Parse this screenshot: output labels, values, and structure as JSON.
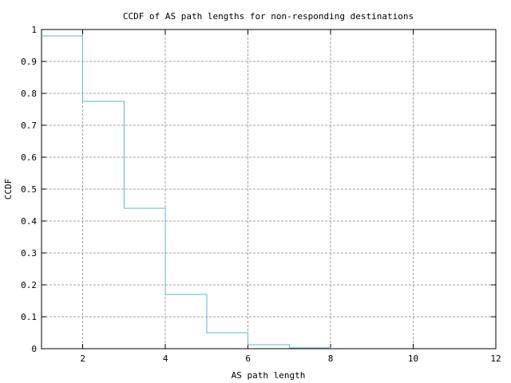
{
  "chart_data": {
    "type": "line",
    "subtype": "ccdf-step",
    "title": "CCDF of AS path lengths for non-responding destinations",
    "xlabel": "AS path length",
    "ylabel": "CCDF",
    "xlim": [
      1,
      12
    ],
    "ylim": [
      0,
      1
    ],
    "grid": "dashed",
    "legend": "none",
    "x_ticks": [
      {
        "v": 2,
        "label": "2",
        "grid": true
      },
      {
        "v": 4,
        "label": "4",
        "grid": true
      },
      {
        "v": 6,
        "label": "6",
        "grid": true
      },
      {
        "v": 8,
        "label": "8",
        "grid": true
      },
      {
        "v": 10,
        "label": "10",
        "grid": true
      },
      {
        "v": 12,
        "label": "12",
        "grid": false
      }
    ],
    "y_ticks": [
      {
        "v": 0,
        "label": "0",
        "grid": false
      },
      {
        "v": 0.1,
        "label": "0.1",
        "grid": true
      },
      {
        "v": 0.2,
        "label": "0.2",
        "grid": true
      },
      {
        "v": 0.3,
        "label": "0.3",
        "grid": true
      },
      {
        "v": 0.4,
        "label": "0.4",
        "grid": true
      },
      {
        "v": 0.5,
        "label": "0.5",
        "grid": true
      },
      {
        "v": 0.6,
        "label": "0.6",
        "grid": true
      },
      {
        "v": 0.7,
        "label": "0.7",
        "grid": true
      },
      {
        "v": 0.8,
        "label": "0.8",
        "grid": true
      },
      {
        "v": 0.9,
        "label": "0.9",
        "grid": true
      },
      {
        "v": 1,
        "label": "1",
        "grid": false
      }
    ],
    "series": [
      {
        "name": "CCDF of AS path length",
        "color": "#58b5e5",
        "steps": [
          {
            "x_from": 1,
            "x_to": 2,
            "y": 0.98
          },
          {
            "x_from": 2,
            "x_to": 3,
            "y": 0.775
          },
          {
            "x_from": 3,
            "x_to": 4,
            "y": 0.44
          },
          {
            "x_from": 4,
            "x_to": 5,
            "y": 0.17
          },
          {
            "x_from": 5,
            "x_to": 6,
            "y": 0.05
          },
          {
            "x_from": 6,
            "x_to": 7,
            "y": 0.013
          },
          {
            "x_from": 7,
            "x_to": 8,
            "y": 0.003
          }
        ],
        "final_drop_to": 0
      }
    ]
  },
  "colors": {
    "background": "#ffffff",
    "border": "#000000",
    "grid": "#a0a0a0",
    "text": "#000000"
  }
}
